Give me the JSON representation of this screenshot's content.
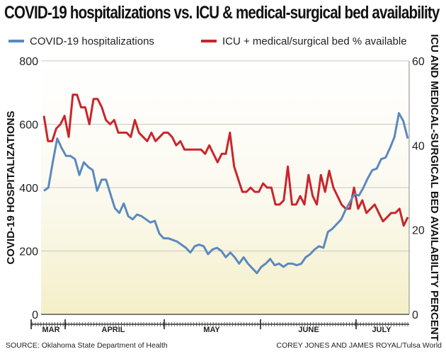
{
  "chart_data": {
    "type": "line",
    "title": "COVID-19 hospitalizations vs. ICU & medical-surgical bed availability",
    "ylabel_left": "COVID-19 HOSPITALIZATIONS",
    "ylabel_right": "ICU AND MEDICAL-SURGICAL BED AVAILABILITY PERCENT",
    "ylim_left": [
      0,
      800
    ],
    "ylim_right": [
      0,
      60
    ],
    "yticks_left": [
      "0",
      "200",
      "400",
      "600",
      "800"
    ],
    "yticks_right": [
      "0",
      "20",
      "40",
      "60"
    ],
    "xlabels": [
      "MAR",
      "APRIL",
      "MAY",
      "JUNE",
      "JULY"
    ],
    "grid": true,
    "legend_position": "top",
    "series": [
      {
        "name": "COVID-19 hospitalizations",
        "axis": "left",
        "color": "#5b89bf",
        "values": [
          390,
          400,
          480,
          555,
          525,
          500,
          500,
          490,
          440,
          480,
          465,
          455,
          390,
          425,
          425,
          380,
          335,
          320,
          350,
          310,
          300,
          315,
          310,
          300,
          290,
          295,
          255,
          240,
          240,
          235,
          230,
          220,
          210,
          195,
          215,
          220,
          215,
          190,
          205,
          210,
          200,
          180,
          195,
          180,
          160,
          180,
          160,
          145,
          130,
          150,
          160,
          175,
          155,
          160,
          150,
          160,
          160,
          155,
          160,
          180,
          190,
          205,
          215,
          210,
          260,
          270,
          285,
          300,
          330,
          355,
          380,
          375,
          400,
          430,
          455,
          460,
          490,
          495,
          525,
          560,
          635,
          610,
          555
        ]
      },
      {
        "name": "ICU + medical/surgical bed % available",
        "axis": "right",
        "color": "#c9252c",
        "values": [
          47,
          41,
          41,
          44,
          45,
          47,
          42,
          52,
          52,
          49,
          49,
          45,
          51,
          51,
          49,
          46,
          45,
          46,
          43,
          43,
          43,
          42,
          46,
          43,
          42,
          41,
          43,
          41,
          42,
          43,
          43,
          42,
          40,
          41,
          39,
          39,
          39,
          39,
          39,
          38,
          40,
          38,
          36,
          38,
          38,
          43,
          35,
          32,
          29,
          29,
          30,
          29,
          29,
          31,
          30,
          30,
          26,
          26,
          27,
          35,
          26,
          26,
          28,
          26,
          33,
          28,
          26,
          33,
          29,
          34,
          30,
          28,
          26,
          25,
          25,
          30,
          25,
          27,
          24,
          25,
          26,
          24,
          22,
          23,
          24,
          24,
          25,
          21,
          23
        ]
      }
    ]
  },
  "footer": {
    "source": "SOURCE: Oklahoma State Department of Health",
    "credit": "COREY JONES AND JAMES ROYAL/Tulsa World"
  }
}
